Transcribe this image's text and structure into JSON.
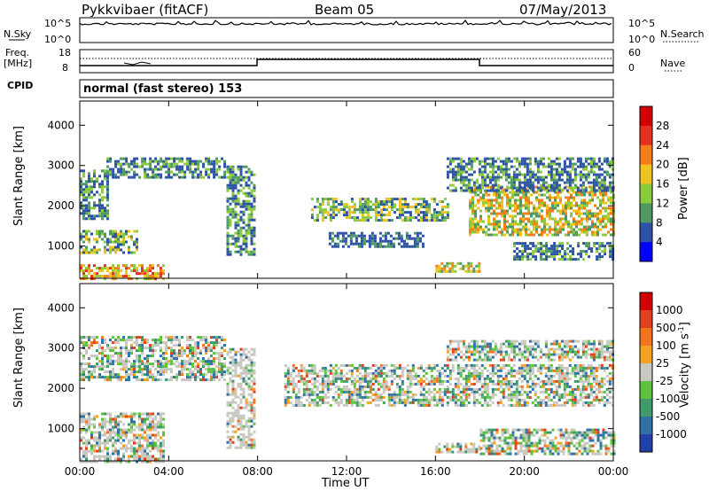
{
  "header": {
    "station": "Pykkvibaer (fitACF)",
    "beam": "Beam 05",
    "date": "07/May/2013"
  },
  "sky_panel": {
    "left_label": "N.Sky",
    "right_label": "N.Search",
    "ticks_left": [
      "10^5",
      "10^0"
    ],
    "ticks_right": [
      "10^5",
      "10^0"
    ]
  },
  "freq_panel": {
    "left_label_1": "Freq.",
    "left_label_2": "[MHz]",
    "right_label": "Nave",
    "ticks_left": [
      "18",
      "8"
    ],
    "ticks_right": [
      "60",
      "0"
    ]
  },
  "cpid": {
    "label": "CPID",
    "mode": "normal (fast stereo) 153"
  },
  "chart_data": [
    {
      "type": "heatmap",
      "name": "power",
      "ylabel": "Slant Range [km]",
      "yticks": [
        1000,
        2000,
        3000,
        4000
      ],
      "ylim": [
        200,
        4600
      ],
      "xlim_hours": [
        0,
        24
      ],
      "colorbar_label": "Power [dB]",
      "colorbar_ticks": [
        "4",
        "8",
        "12",
        "16",
        "20",
        "24",
        "28"
      ],
      "colorbar_colors": [
        "#0000ff",
        "#2b52a4",
        "#4f9a62",
        "#8acb3c",
        "#f0c21e",
        "#f57d1a",
        "#e8301e",
        "#d40000"
      ],
      "echo_regions": [
        {
          "t0": 0.0,
          "t1": 1.2,
          "r0": 1700,
          "r1": 2900,
          "level": 0.35
        },
        {
          "t0": 1.2,
          "t1": 6.5,
          "r0": 2700,
          "r1": 3200,
          "level": 0.3
        },
        {
          "t0": 0.0,
          "t1": 2.6,
          "r0": 850,
          "r1": 1400,
          "level": 0.55
        },
        {
          "t0": 0.0,
          "t1": 3.8,
          "r0": 200,
          "r1": 550,
          "level": 0.85
        },
        {
          "t0": 6.6,
          "t1": 7.8,
          "r0": 800,
          "r1": 3000,
          "level": 0.35
        },
        {
          "t0": 10.4,
          "t1": 16.5,
          "r0": 1650,
          "r1": 2200,
          "level": 0.55
        },
        {
          "t0": 11.2,
          "t1": 15.5,
          "r0": 1000,
          "r1": 1350,
          "level": 0.25
        },
        {
          "t0": 16.0,
          "t1": 18.0,
          "r0": 350,
          "r1": 600,
          "level": 0.65
        },
        {
          "t0": 17.5,
          "t1": 24.0,
          "r0": 1300,
          "r1": 2500,
          "level": 0.6
        },
        {
          "t0": 19.5,
          "t1": 24.0,
          "r0": 700,
          "r1": 1100,
          "level": 0.35
        },
        {
          "t0": 16.5,
          "t1": 24.0,
          "r0": 2400,
          "r1": 3200,
          "level": 0.3
        }
      ]
    },
    {
      "type": "heatmap",
      "name": "velocity",
      "ylabel": "Slant Range [km]",
      "yticks": [
        1000,
        2000,
        3000,
        4000
      ],
      "ylim": [
        200,
        4600
      ],
      "xlabel": "Time UT",
      "xticks": [
        "00:00",
        "04:00",
        "08:00",
        "12:00",
        "16:00",
        "20:00",
        "00:00"
      ],
      "xlim_hours": [
        0,
        24
      ],
      "colorbar_label": "Velocity [m s",
      "colorbar_label_sup": "-1",
      "colorbar_label_end": "]",
      "colorbar_ticks": [
        "1000",
        "500",
        "100",
        "25",
        "-25",
        "-100",
        "-500",
        "-1000"
      ],
      "colorbar_colors": [
        "#2340a8",
        "#2f72a8",
        "#3f9a6c",
        "#5dc23d",
        "#c8c8c0",
        "#f5a21e",
        "#f2741c",
        "#e23f1e",
        "#d40000"
      ],
      "echo_regions": [
        {
          "t0": 0.0,
          "t1": 6.5,
          "r0": 2200,
          "r1": 3300,
          "level": 0.5
        },
        {
          "t0": 0.0,
          "t1": 3.8,
          "r0": 200,
          "r1": 1400,
          "level": 0.7
        },
        {
          "t0": 6.6,
          "t1": 7.8,
          "r0": 500,
          "r1": 3000,
          "level": 0.8
        },
        {
          "t0": 9.2,
          "t1": 24.0,
          "r0": 1550,
          "r1": 2600,
          "level": 0.5
        },
        {
          "t0": 16.0,
          "t1": 18.0,
          "r0": 420,
          "r1": 650,
          "level": 0.8
        },
        {
          "t0": 18.0,
          "t1": 24.0,
          "r0": 400,
          "r1": 1000,
          "level": 0.45
        },
        {
          "t0": 16.5,
          "t1": 24.0,
          "r0": 2700,
          "r1": 3200,
          "level": 0.5
        }
      ]
    }
  ]
}
